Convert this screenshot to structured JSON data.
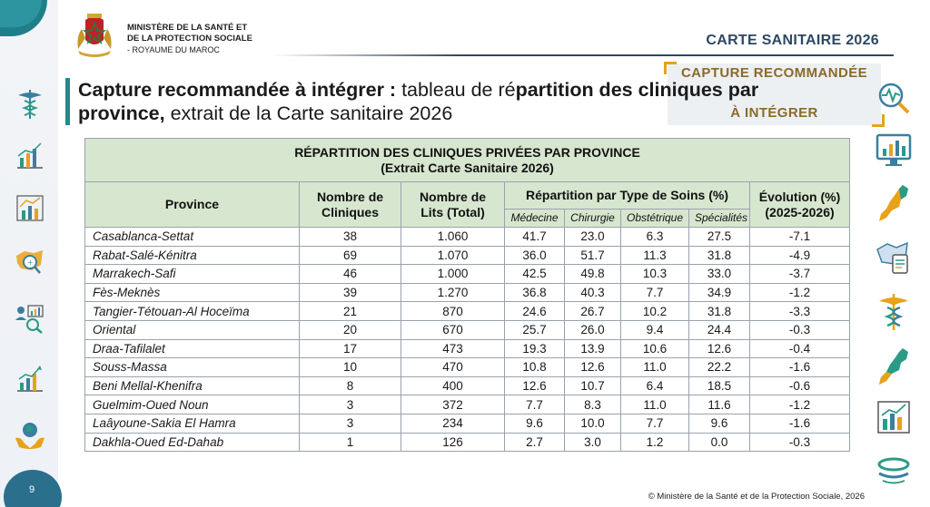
{
  "header": {
    "ministry_line1": "MINISTÈRE DE LA SANTÉ ET",
    "ministry_line2": "DE LA PROTECTION SOCIALE",
    "ministry_line3": "- ROYAUME DU MAROC",
    "brand": "CARTE SANITAIRE 2026"
  },
  "badge": {
    "line1": "CAPTURE RECOMMANDÉE",
    "line2": "À INTÉGRER"
  },
  "heading": {
    "bold1": "Capture recommandée à intégrer :",
    "normal1": " tableau de ré",
    "bold2": "partition des cliniques par province,",
    "normal2": " extrait de la Carte sanitaire 2026"
  },
  "table": {
    "caption_line1": "RÉPARTITION DES CLINIQUES PRIVÉES PAR PROVINCE",
    "caption_line2": "(Extrait Carte Sanitaire 2026)",
    "col_province": "Province",
    "col_cliniques": "Nombre de Cliniques",
    "col_lits": "Nombre de Lits (Total)",
    "col_repartition": "Répartition par Type de Soins (%)",
    "col_evolution": "Évolution (%) (2025-2026)",
    "sub_medecine": "Médecine",
    "sub_chirurgie": "Chirurgie",
    "sub_obstetrique": "Obstétrique",
    "sub_specialites": "Spécialités",
    "rows": [
      {
        "province": "Casablanca-Settat",
        "cliniques": "38",
        "lits": "1.060",
        "medecine": "41.7",
        "chirurgie": "23.0",
        "obstetrique": "6.3",
        "specialites": "27.5",
        "evolution": "-7.1"
      },
      {
        "province": "Rabat-Salé-Kénitra",
        "cliniques": "69",
        "lits": "1.070",
        "medecine": "36.0",
        "chirurgie": "51.7",
        "obstetrique": "11.3",
        "specialites": "31.8",
        "evolution": "-4.9"
      },
      {
        "province": "Marrakech-Safi",
        "cliniques": "46",
        "lits": "1.000",
        "medecine": "42.5",
        "chirurgie": "49.8",
        "obstetrique": "10.3",
        "specialites": "33.0",
        "evolution": "-3.7"
      },
      {
        "province": "Fès-Meknès",
        "cliniques": "39",
        "lits": "1.270",
        "medecine": "36.8",
        "chirurgie": "40.3",
        "obstetrique": "7.7",
        "specialites": "34.9",
        "evolution": "-1.2"
      },
      {
        "province": "Tangier-Tétouan-Al Hoceïma",
        "cliniques": "21",
        "lits": "870",
        "medecine": "24.6",
        "chirurgie": "26.7",
        "obstetrique": "10.2",
        "specialites": "31.8",
        "evolution": "-3.3"
      },
      {
        "province": "Oriental",
        "cliniques": "20",
        "lits": "670",
        "medecine": "25.7",
        "chirurgie": "26.0",
        "obstetrique": "9.4",
        "specialites": "24.4",
        "evolution": "-0.3"
      },
      {
        "province": "Draa-Tafilalet",
        "cliniques": "17",
        "lits": "473",
        "medecine": "19.3",
        "chirurgie": "13.9",
        "obstetrique": "10.6",
        "specialites": "12.6",
        "evolution": "-0.4"
      },
      {
        "province": "Souss-Massa",
        "cliniques": "10",
        "lits": "470",
        "medecine": "10.8",
        "chirurgie": "12.6",
        "obstetrique": "11.0",
        "specialites": "22.2",
        "evolution": "-1.6"
      },
      {
        "province": "Beni Mellal-Khenifra",
        "cliniques": "8",
        "lits": "400",
        "medecine": "12.6",
        "chirurgie": "10.7",
        "obstetrique": "6.4",
        "specialites": "18.5",
        "evolution": "-0.6"
      },
      {
        "province": "Guelmim-Oued Noun",
        "cliniques": "3",
        "lits": "372",
        "medecine": "7.7",
        "chirurgie": "8.3",
        "obstetrique": "11.0",
        "specialites": "11.6",
        "evolution": "-1.2"
      },
      {
        "province": "Laâyoune-Sakia El Hamra",
        "cliniques": "3",
        "lits": "234",
        "medecine": "9.6",
        "chirurgie": "10.0",
        "obstetrique": "7.7",
        "specialites": "9.6",
        "evolution": "-1.6"
      },
      {
        "province": "Dakhla-Oued Ed-Dahab",
        "cliniques": "1",
        "lits": "126",
        "medecine": "2.7",
        "chirurgie": "3.0",
        "obstetrique": "1.2",
        "specialites": "0.0",
        "evolution": "-0.3"
      }
    ]
  },
  "footer": {
    "copyright": "© Ministère de la Santé et de la Protection Sociale, 2026",
    "page_number": "9"
  },
  "icons": {
    "left": [
      "caduceus-icon",
      "bar-chart-icon",
      "line-chart-icon",
      "map-magnifier-icon",
      "people-analytics-icon",
      "growth-chart-icon",
      "globe-hands-icon"
    ],
    "right": [
      "pulse-search-icon",
      "monitor-chart-icon",
      "morocco-map-icon",
      "map-document-icon",
      "caduceus-icon",
      "morocco-map-icon",
      "bar-chart-icon",
      "logo-icon"
    ]
  },
  "colors": {
    "teal": "#1e7f88",
    "navy": "#2d4863",
    "gold": "#e8a21a",
    "caption_bg": "#d7deeb",
    "header_bg": "#d7e6cf"
  }
}
